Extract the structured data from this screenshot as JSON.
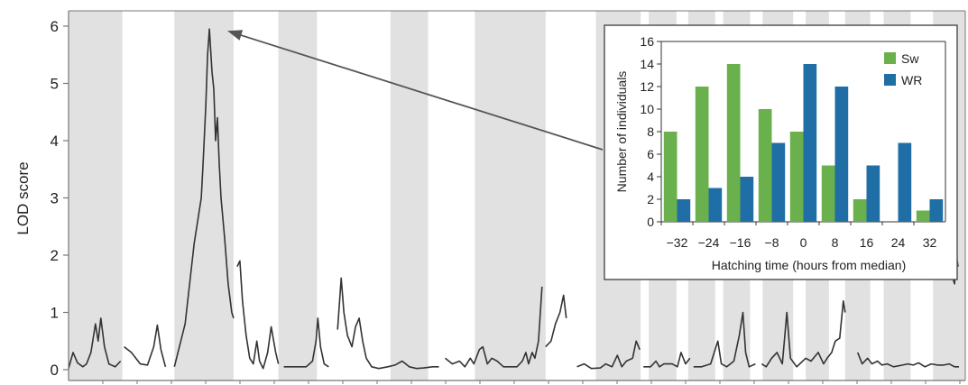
{
  "chart_data": [
    {
      "type": "line",
      "ylabel": "LOD score",
      "xlabel": "",
      "ylim": [
        0,
        6
      ],
      "yticks": [
        0,
        1,
        2,
        3,
        4,
        5,
        6
      ],
      "yticklabels": [
        "0",
        "1",
        "2",
        "3",
        "4",
        "5",
        "6"
      ],
      "x_units": "position along genome (scaled 0-1000)",
      "xlim": [
        0,
        1000
      ],
      "chromosome_bands": [
        [
          0,
          60
        ],
        [
          118,
          184
        ],
        [
          234,
          277
        ],
        [
          359,
          401
        ],
        [
          453,
          532
        ],
        [
          588,
          638
        ],
        [
          647,
          678
        ],
        [
          691,
          721
        ],
        [
          730,
          760
        ],
        [
          774,
          808
        ],
        [
          822,
          848
        ],
        [
          866,
          894
        ],
        [
          909,
          939
        ],
        [
          964,
          1000
        ]
      ],
      "series": [
        {
          "points": [
            [
              0,
              0.02
            ],
            [
              5,
              0.3
            ],
            [
              10,
              0.12
            ],
            [
              16,
              0.05
            ],
            [
              20,
              0.1
            ],
            [
              25,
              0.3
            ],
            [
              30,
              0.8
            ],
            [
              33,
              0.5
            ],
            [
              36,
              0.9
            ],
            [
              40,
              0.4
            ],
            [
              45,
              0.1
            ],
            [
              52,
              0.05
            ],
            [
              58,
              0.15
            ]
          ]
        },
        {
          "points": [
            [
              62,
              0.4
            ],
            [
              70,
              0.3
            ],
            [
              80,
              0.1
            ],
            [
              88,
              0.08
            ],
            [
              95,
              0.4
            ],
            [
              99,
              0.78
            ],
            [
              103,
              0.35
            ],
            [
              108,
              0.05
            ]
          ]
        },
        {
          "points": [
            [
              118,
              0.05
            ],
            [
              130,
              0.8
            ],
            [
              140,
              2.2
            ],
            [
              148,
              3.0
            ],
            [
              150,
              3.6
            ],
            [
              153,
              4.6
            ],
            [
              155,
              5.5
            ],
            [
              157,
              5.95
            ],
            [
              160,
              5.2
            ],
            [
              162,
              4.9
            ],
            [
              164,
              4.0
            ],
            [
              166,
              4.4
            ],
            [
              168,
              3.6
            ],
            [
              170,
              3.0
            ],
            [
              174,
              2.3
            ],
            [
              178,
              1.5
            ],
            [
              182,
              1.0
            ],
            [
              184,
              0.9
            ]
          ]
        },
        {
          "points": [
            [
              188,
              1.8
            ],
            [
              191,
              1.9
            ],
            [
              194,
              1.2
            ],
            [
              198,
              0.6
            ],
            [
              202,
              0.2
            ],
            [
              206,
              0.1
            ],
            [
              210,
              0.5
            ],
            [
              213,
              0.15
            ],
            [
              217,
              0.02
            ],
            [
              222,
              0.3
            ],
            [
              226,
              0.75
            ],
            [
              231,
              0.3
            ],
            [
              234,
              0.1
            ]
          ]
        },
        {
          "points": [
            [
              240,
              0.05
            ],
            [
              255,
              0.05
            ],
            [
              265,
              0.05
            ],
            [
              272,
              0.15
            ],
            [
              276,
              0.5
            ],
            [
              278,
              0.9
            ],
            [
              281,
              0.4
            ],
            [
              285,
              0.1
            ],
            [
              290,
              0.05
            ]
          ]
        },
        {
          "points": [
            [
              300,
              0.7
            ],
            [
              304,
              1.6
            ],
            [
              307,
              1.0
            ],
            [
              311,
              0.6
            ],
            [
              316,
              0.4
            ],
            [
              320,
              0.75
            ],
            [
              324,
              0.9
            ],
            [
              328,
              0.5
            ],
            [
              332,
              0.2
            ],
            [
              338,
              0.05
            ],
            [
              346,
              0.02
            ],
            [
              356,
              0.05
            ],
            [
              364,
              0.08
            ],
            [
              372,
              0.15
            ],
            [
              380,
              0.05
            ],
            [
              388,
              0.02
            ],
            [
              396,
              0.03
            ],
            [
              406,
              0.05
            ],
            [
              413,
              0.05
            ]
          ]
        },
        {
          "points": [
            [
              420,
              0.2
            ],
            [
              428,
              0.1
            ],
            [
              436,
              0.15
            ],
            [
              442,
              0.05
            ],
            [
              448,
              0.2
            ],
            [
              452,
              0.1
            ],
            [
              458,
              0.35
            ],
            [
              462,
              0.4
            ],
            [
              467,
              0.1
            ],
            [
              472,
              0.2
            ],
            [
              478,
              0.15
            ],
            [
              485,
              0.05
            ],
            [
              492,
              0.05
            ],
            [
              500,
              0.05
            ],
            [
              506,
              0.15
            ],
            [
              510,
              0.3
            ],
            [
              513,
              0.1
            ],
            [
              517,
              0.3
            ],
            [
              520,
              0.2
            ],
            [
              524,
              0.5
            ],
            [
              528,
              1.45
            ]
          ]
        },
        {
          "points": [
            [
              532,
              0.4
            ],
            [
              538,
              0.5
            ],
            [
              543,
              0.8
            ],
            [
              548,
              1.0
            ],
            [
              552,
              1.3
            ],
            [
              555,
              0.9
            ]
          ]
        },
        {
          "points": [
            [
              567,
              0.05
            ],
            [
              575,
              0.1
            ],
            [
              583,
              0.02
            ],
            [
              593,
              0.03
            ],
            [
              599,
              0.1
            ],
            [
              606,
              0.05
            ],
            [
              612,
              0.25
            ],
            [
              617,
              0.05
            ],
            [
              622,
              0.15
            ],
            [
              629,
              0.2
            ],
            [
              633,
              0.5
            ],
            [
              637,
              0.35
            ]
          ]
        },
        {
          "points": [
            [
              641,
              0.05
            ],
            [
              649,
              0.05
            ],
            [
              655,
              0.15
            ],
            [
              659,
              0.05
            ],
            [
              664,
              0.1
            ],
            [
              669,
              0.1
            ],
            [
              673,
              0.1
            ],
            [
              679,
              0.05
            ],
            [
              683,
              0.3
            ],
            [
              688,
              0.1
            ],
            [
              693,
              0.2
            ]
          ]
        },
        {
          "points": [
            [
              697,
              0.05
            ],
            [
              706,
              0.05
            ],
            [
              716,
              0.1
            ],
            [
              724,
              0.5
            ],
            [
              728,
              0.1
            ],
            [
              734,
              0.05
            ],
            [
              742,
              0.15
            ],
            [
              748,
              0.6
            ],
            [
              752,
              1.0
            ],
            [
              755,
              0.3
            ],
            [
              759,
              0.05
            ],
            [
              766,
              0.1
            ]
          ]
        },
        {
          "points": [
            [
              773,
              0.1
            ],
            [
              778,
              0.05
            ],
            [
              784,
              0.2
            ],
            [
              790,
              0.3
            ],
            [
              796,
              0.1
            ],
            [
              801,
              1.0
            ],
            [
              805,
              0.2
            ],
            [
              812,
              0.05
            ],
            [
              822,
              0.2
            ],
            [
              828,
              0.15
            ],
            [
              836,
              0.3
            ],
            [
              842,
              0.1
            ],
            [
              846,
              0.2
            ],
            [
              851,
              0.3
            ],
            [
              855,
              0.5
            ],
            [
              860,
              0.55
            ],
            [
              864,
              1.2
            ],
            [
              866,
              1.0
            ]
          ]
        },
        {
          "points": [
            [
              880,
              0.3
            ],
            [
              885,
              0.1
            ],
            [
              891,
              0.2
            ],
            [
              896,
              0.1
            ],
            [
              902,
              0.15
            ],
            [
              907,
              0.08
            ],
            [
              913,
              0.1
            ],
            [
              920,
              0.05
            ],
            [
              930,
              0.08
            ],
            [
              936,
              0.1
            ],
            [
              942,
              0.08
            ],
            [
              948,
              0.12
            ],
            [
              955,
              0.05
            ],
            [
              962,
              0.1
            ],
            [
              969,
              0.08
            ],
            [
              976,
              0.08
            ],
            [
              982,
              0.1
            ],
            [
              988,
              0.05
            ],
            [
              993,
              0.05
            ]
          ]
        },
        {
          "points": [
            [
              984,
              2.0
            ],
            [
              986,
              1.6
            ],
            [
              988,
              1.5
            ],
            [
              990,
              2.0
            ],
            [
              992,
              1.8
            ]
          ]
        }
      ]
    },
    {
      "type": "bar",
      "title": "",
      "xlabel": "Hatching time (hours from median)",
      "ylabel": "Number of individuals",
      "ylim": [
        0,
        16
      ],
      "yticks": [
        0,
        2,
        4,
        6,
        8,
        10,
        12,
        14,
        16
      ],
      "categories": [
        "−32",
        "−24",
        "−16",
        "−8",
        "0",
        "8",
        "16",
        "24",
        "32"
      ],
      "series": [
        {
          "name": "Sw",
          "color": "#6ab04c",
          "values": [
            8,
            12,
            14,
            10,
            8,
            5,
            2,
            0,
            1
          ]
        },
        {
          "name": "WR",
          "color": "#1f6ea6",
          "values": [
            2,
            3,
            4,
            7,
            14,
            12,
            5,
            7,
            2
          ]
        }
      ],
      "legend": "top-right"
    }
  ],
  "colors": {
    "band": "#e1e1e1",
    "line": "#333333",
    "arrow": "#555555",
    "axis": "#777777"
  }
}
